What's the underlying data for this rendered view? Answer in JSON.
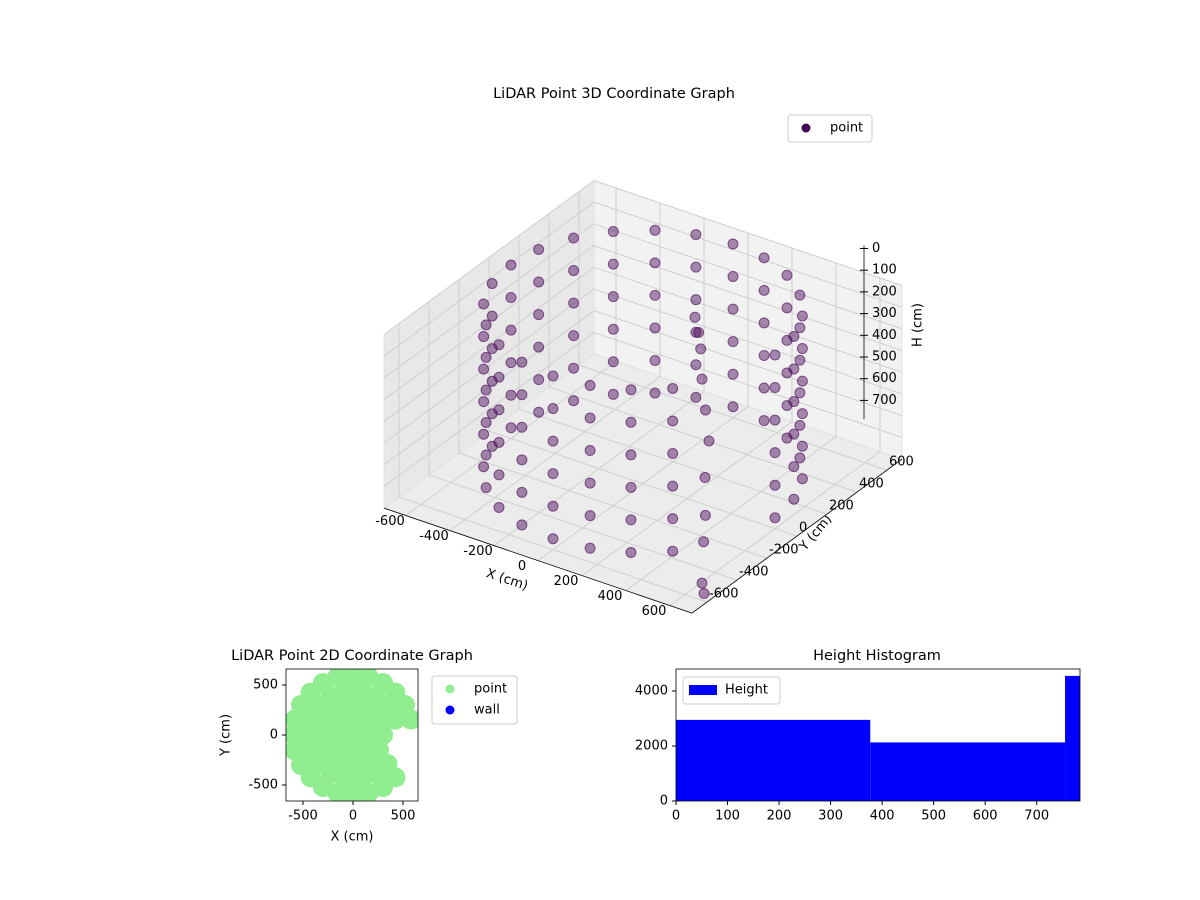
{
  "chart_data": [
    {
      "type": "scatter3d",
      "title": "LiDAR Point 3D Coordinate Graph",
      "xlabel": "X (cm)",
      "ylabel": "Y (cm)",
      "zlabel": "H (cm)",
      "xlim": [
        -700,
        700
      ],
      "ylim": [
        -700,
        700
      ],
      "zlim": [
        0,
        800
      ],
      "z_inverted": true,
      "grid": true,
      "legend": "upper right",
      "xticks": [
        -600,
        -400,
        -200,
        0,
        200,
        400,
        600
      ],
      "yticks": [
        -600,
        -400,
        -200,
        0,
        200,
        400,
        600
      ],
      "zticks": [
        0,
        100,
        200,
        300,
        400,
        500,
        600,
        700
      ],
      "series": [
        {
          "name": "point",
          "color": "#440154",
          "x": [
            600,
            580,
            520,
            424,
            300,
            155,
            0,
            -155,
            -300,
            -424,
            -520,
            -580,
            -600,
            -580,
            -520,
            -424,
            -300,
            -155,
            0,
            155,
            300,
            424,
            600,
            580,
            520,
            424,
            300,
            155,
            0,
            -155,
            -300,
            -424,
            -520,
            -580,
            -600,
            -580,
            -520,
            -424,
            -300,
            -155,
            0,
            155,
            300,
            424,
            600,
            580,
            520,
            424,
            300,
            155,
            0,
            -155,
            -300,
            -424,
            -520,
            -580,
            -600,
            -580,
            -520,
            -424,
            -300,
            -155,
            0,
            155,
            300,
            424,
            600,
            580,
            520,
            424,
            300,
            155,
            0,
            -155,
            -300,
            -424,
            -520,
            -580,
            -600,
            -580,
            -520,
            -424,
            -300,
            -155,
            0,
            155,
            300,
            424,
            600,
            580,
            520,
            424,
            300,
            155,
            0,
            -155,
            -300,
            -424,
            -520,
            -580,
            -600,
            -580,
            -520,
            -424,
            -300,
            -155,
            0,
            155,
            300,
            424,
            600,
            580,
            520,
            424,
            300,
            155,
            0,
            -155,
            -300,
            -424,
            -520,
            -580,
            -600,
            -580,
            -520,
            -424,
            -300,
            -155,
            0,
            155,
            300,
            424,
            100,
            130,
            160,
            200,
            250,
            300,
            350,
            420,
            480,
            650,
            700
          ],
          "y": [
            0,
            155,
            300,
            424,
            520,
            580,
            600,
            580,
            520,
            424,
            300,
            155,
            0,
            -155,
            -300,
            -424,
            -520,
            -580,
            -600,
            -580,
            -520,
            -424,
            0,
            155,
            300,
            424,
            520,
            580,
            600,
            580,
            520,
            424,
            300,
            155,
            0,
            -155,
            -300,
            -424,
            -520,
            -580,
            -600,
            -580,
            -520,
            -424,
            0,
            155,
            300,
            424,
            520,
            580,
            600,
            580,
            520,
            424,
            300,
            155,
            0,
            -155,
            -300,
            -424,
            -520,
            -580,
            -600,
            -580,
            -520,
            -424,
            0,
            155,
            300,
            424,
            520,
            580,
            600,
            580,
            520,
            424,
            300,
            155,
            0,
            -155,
            -300,
            -424,
            -520,
            -580,
            -600,
            -580,
            -520,
            -424,
            0,
            155,
            300,
            424,
            520,
            580,
            600,
            580,
            520,
            424,
            300,
            155,
            0,
            -155,
            -300,
            -424,
            -520,
            -580,
            -600,
            -580,
            -520,
            -424,
            0,
            155,
            300,
            424,
            520,
            580,
            600,
            580,
            520,
            424,
            300,
            155,
            0,
            -155,
            -300,
            -424,
            -520,
            -580,
            -600,
            -580,
            -520,
            -424,
            200,
            180,
            150,
            100,
            50,
            0,
            -100,
            -200,
            -300,
            -560,
            -620
          ],
          "z": [
            0,
            0,
            0,
            0,
            0,
            0,
            0,
            0,
            0,
            0,
            0,
            0,
            0,
            0,
            0,
            0,
            0,
            0,
            0,
            0,
            0,
            0,
            150,
            150,
            150,
            150,
            150,
            150,
            150,
            150,
            150,
            150,
            150,
            150,
            150,
            150,
            150,
            150,
            150,
            150,
            150,
            150,
            150,
            150,
            300,
            300,
            300,
            300,
            300,
            300,
            300,
            300,
            300,
            300,
            300,
            300,
            300,
            300,
            300,
            300,
            300,
            300,
            300,
            300,
            300,
            300,
            450,
            450,
            450,
            450,
            450,
            450,
            450,
            450,
            450,
            450,
            450,
            450,
            450,
            450,
            450,
            450,
            450,
            450,
            450,
            450,
            450,
            450,
            600,
            600,
            600,
            600,
            600,
            600,
            600,
            600,
            600,
            600,
            600,
            600,
            600,
            600,
            600,
            600,
            600,
            600,
            600,
            600,
            600,
            600,
            750,
            750,
            750,
            750,
            750,
            750,
            750,
            750,
            750,
            750,
            750,
            750,
            750,
            750,
            750,
            750,
            750,
            750,
            750,
            750,
            750,
            750,
            100,
            150,
            200,
            300,
            400,
            500,
            600,
            700,
            750,
            750,
            750
          ]
        }
      ]
    },
    {
      "type": "scatter",
      "title": "LiDAR Point 2D Coordinate Graph",
      "xlabel": "X (cm)",
      "ylabel": "Y (cm)",
      "xlim": [
        -670,
        650
      ],
      "ylim": [
        -660,
        660
      ],
      "xticks": [
        -500,
        0,
        500
      ],
      "yticks": [
        -500,
        0,
        500
      ],
      "legend": "outside upper right",
      "series": [
        {
          "name": "point",
          "color": "#90ee90",
          "x": [
            0,
            150,
            75,
            -75,
            -150,
            -75,
            75,
            300,
            260,
            150,
            0,
            -150,
            -260,
            -300,
            -260,
            -150,
            0,
            150,
            260,
            423,
            345,
            225,
            78,
            -78,
            -225,
            -345,
            -423,
            -450,
            -423,
            -345,
            -225,
            -78,
            78,
            225,
            345,
            580,
            520,
            424,
            300,
            155,
            0,
            -155,
            -300,
            -424,
            -520,
            -580,
            -600,
            -580,
            -520,
            -424,
            -300,
            -155,
            0,
            155,
            300,
            424
          ],
          "y": [
            0,
            0,
            130,
            130,
            0,
            -130,
            -130,
            0,
            150,
            260,
            300,
            260,
            150,
            0,
            -150,
            -260,
            -300,
            -260,
            -150,
            154,
            289,
            390,
            443,
            443,
            390,
            289,
            154,
            0,
            -154,
            -289,
            -390,
            -443,
            -443,
            -390,
            -289,
            155,
            300,
            424,
            520,
            580,
            600,
            580,
            520,
            424,
            300,
            155,
            0,
            -155,
            -300,
            -424,
            -520,
            -580,
            -600,
            -580,
            -520,
            -424
          ]
        },
        {
          "name": "wall",
          "color": "#0000ff",
          "x": [],
          "y": []
        }
      ]
    },
    {
      "type": "histogram",
      "title": "Height Histogram",
      "xlim": [
        0,
        784
      ],
      "ylim": [
        0,
        4800
      ],
      "xticks": [
        0,
        100,
        200,
        300,
        400,
        500,
        600,
        700
      ],
      "yticks": [
        0,
        2000,
        4000
      ],
      "legend": "upper left",
      "series": [
        {
          "name": "Height",
          "color": "#0000ff",
          "bins": [
            0,
            377,
            755,
            784
          ],
          "counts": [
            2950,
            2130,
            4550
          ]
        }
      ]
    }
  ]
}
